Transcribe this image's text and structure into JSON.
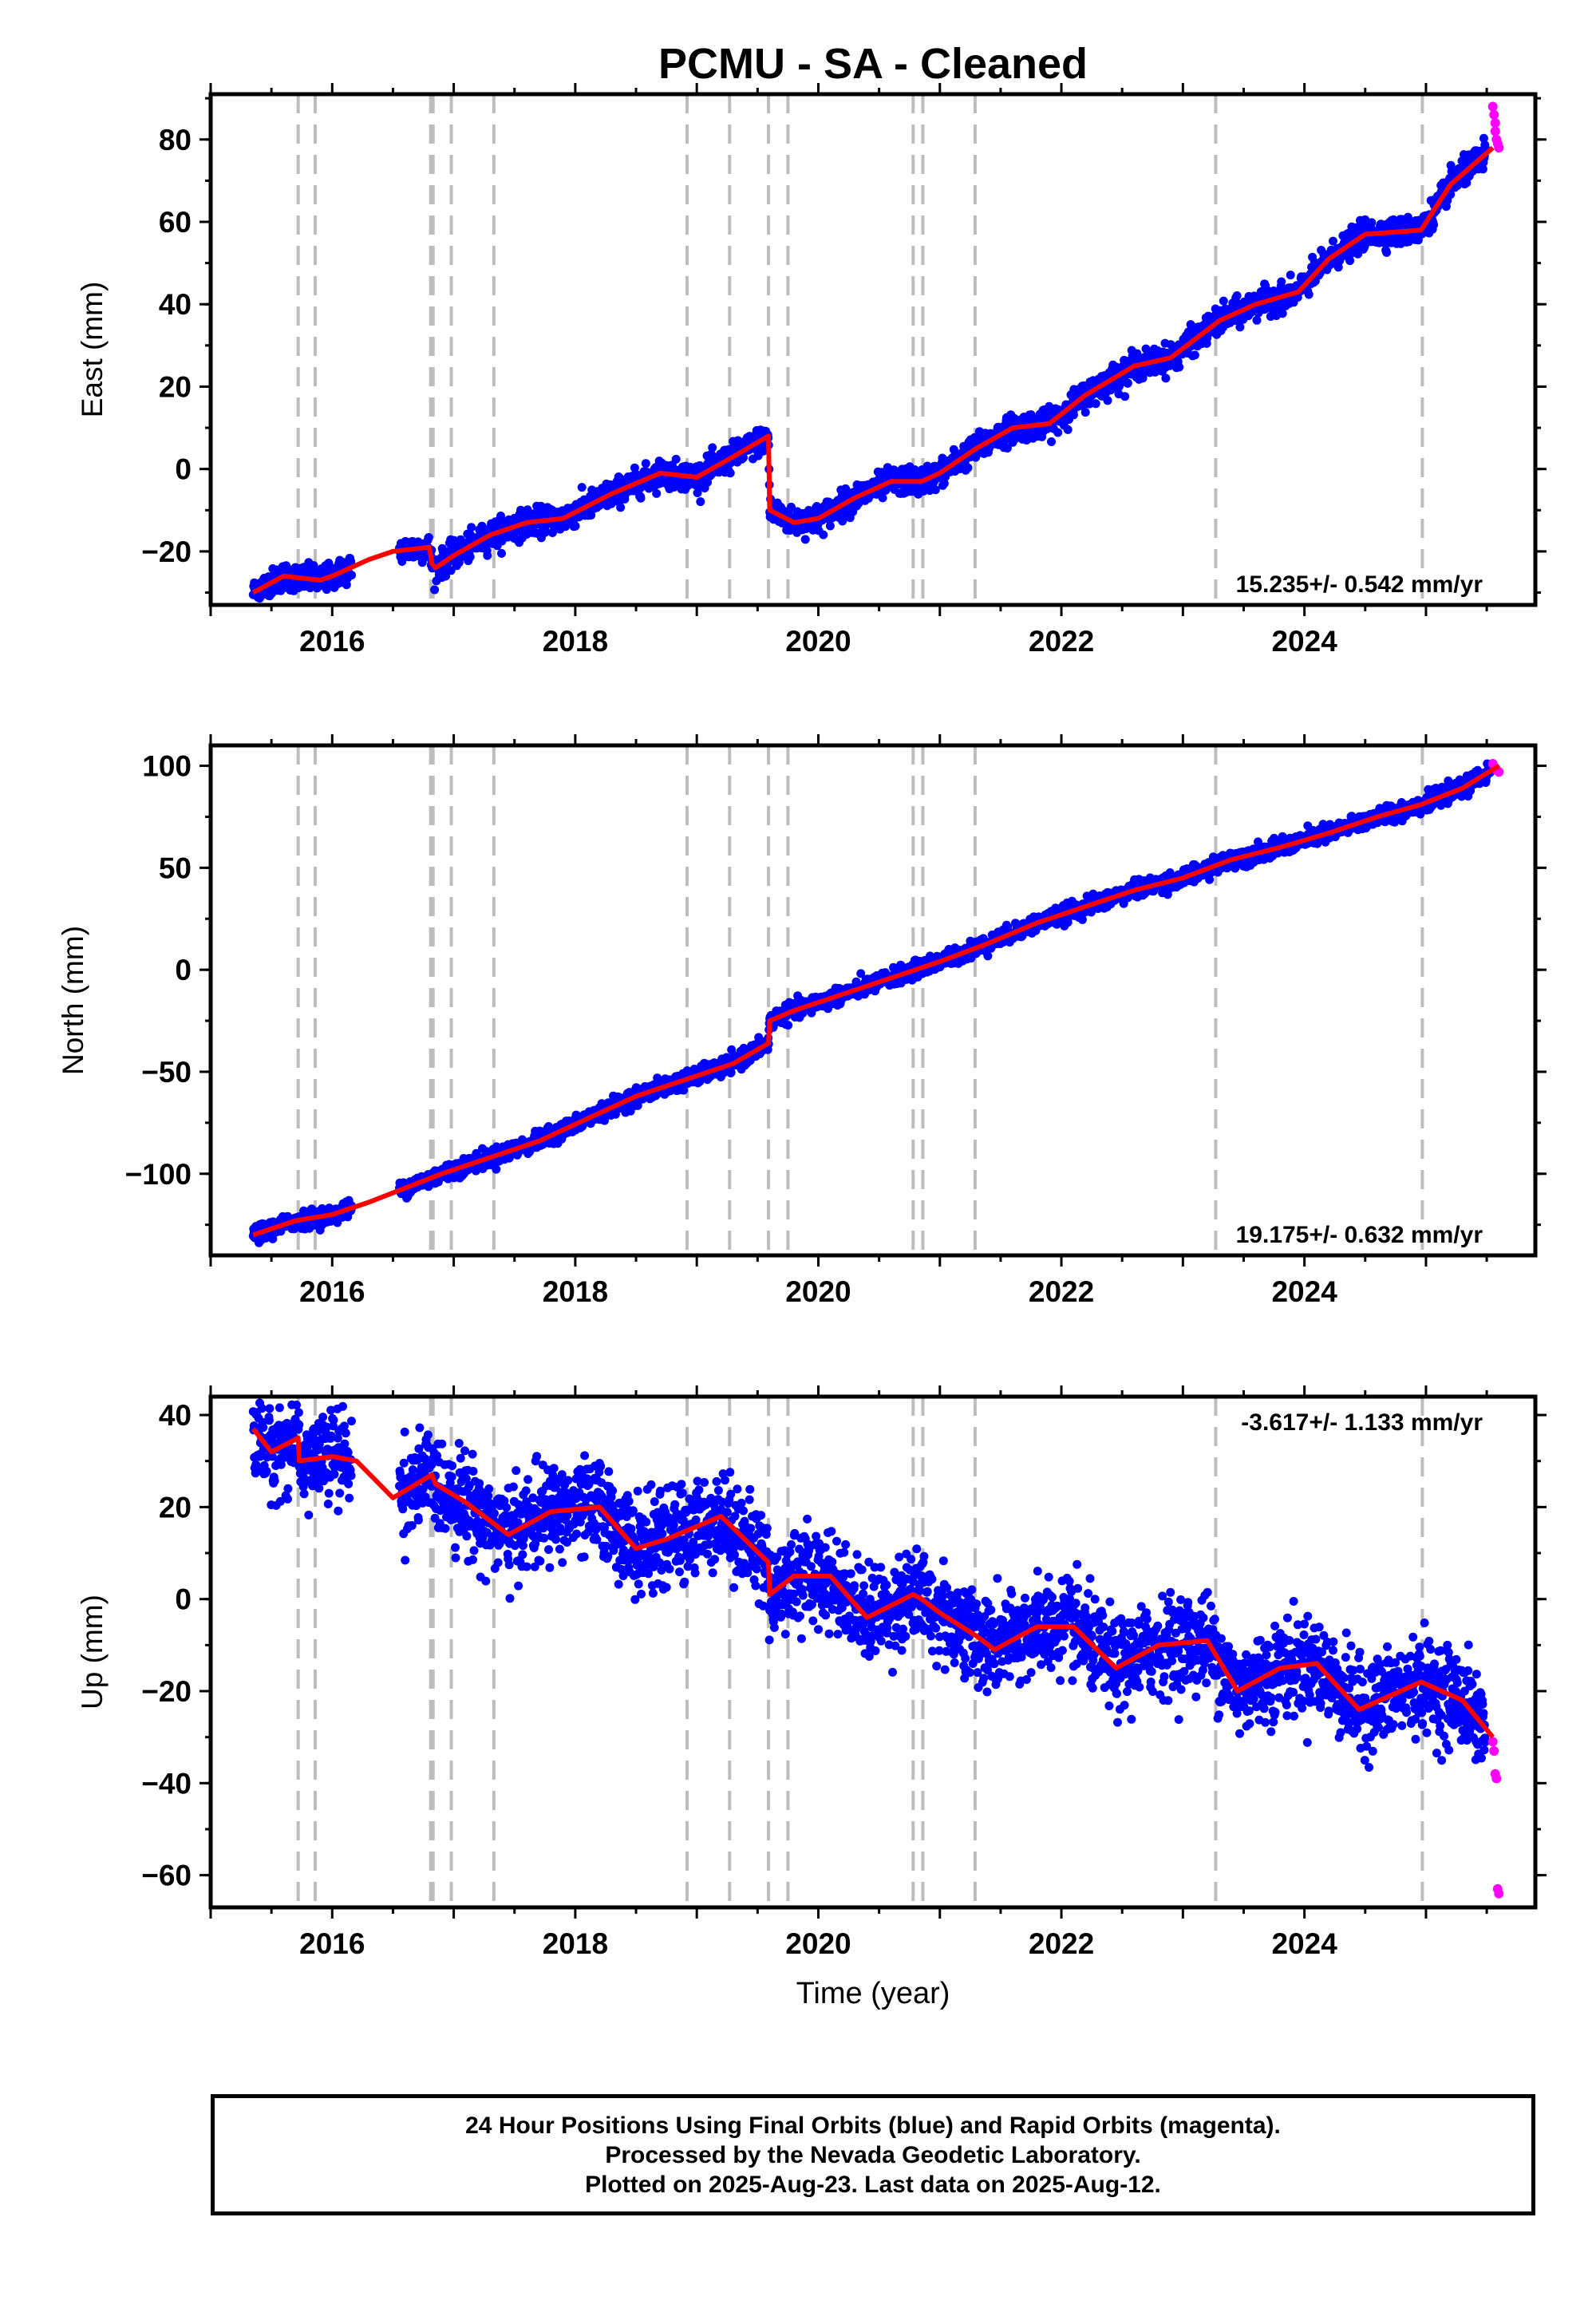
{
  "title": "PCMU  - SA - Cleaned",
  "xlabel": "Time (year)",
  "colors": {
    "final_orbits": "#0000ff",
    "rapid_orbits": "#ff00ff",
    "model": "#ff0000",
    "event_lines": "#bdbdbd"
  },
  "footer": {
    "line1": "24 Hour Positions Using Final Orbits (blue) and Rapid Orbits (magenta).",
    "line2": "Processed by the Nevada Geodetic Laboratory.",
    "line3": "Plotted on 2025-Aug-23. Last data on 2025-Aug-12."
  },
  "chart_data": {
    "type": "scatter",
    "title": "PCMU  - SA - Cleaned",
    "xlabel": "Time (year)",
    "xlim": [
      2015.0,
      2025.9
    ],
    "x_ticks": [
      2016,
      2018,
      2020,
      2022,
      2024
    ],
    "x_tick_labels": [
      "2016",
      "2018",
      "2020",
      "2022",
      "2024"
    ],
    "event_lines": [
      2015.72,
      2015.86,
      2016.81,
      2016.83,
      2016.98,
      2017.33,
      2018.92,
      2019.27,
      2019.59,
      2019.75,
      2020.78,
      2020.86,
      2021.29,
      2023.27,
      2024.97
    ],
    "panels": [
      {
        "name": "east",
        "ylabel": "East (mm)",
        "ylim": [
          -33,
          91
        ],
        "y_ticks": [
          -20,
          0,
          20,
          40,
          60,
          80
        ],
        "y_tick_labels": [
          "−20",
          "0",
          "20",
          "40",
          "60",
          "80"
        ],
        "rate_label": "15.235+/- 0.542 mm/yr",
        "rate_position": "bottom-right",
        "scatter_sigma": 1.6,
        "series": [
          {
            "name": "model",
            "x": [
              2015.35,
              2015.6,
              2015.9,
              2016.0,
              2016.3,
              2016.5,
              2016.8,
              2016.82,
              2016.85,
              2017.0,
              2017.3,
              2017.6,
              2017.9,
              2018.3,
              2018.7,
              2019.0,
              2019.3,
              2019.59,
              2019.6,
              2019.8,
              2020.0,
              2020.3,
              2020.6,
              2020.85,
              2021.0,
              2021.3,
              2021.6,
              2021.9,
              2022.2,
              2022.6,
              2022.9,
              2023.3,
              2023.6,
              2023.95,
              2024.2,
              2024.5,
              2024.96,
              2025.2,
              2025.55
            ],
            "y": [
              -30,
              -26,
              -27,
              -26,
              -22,
              -20,
              -19,
              -23,
              -24,
              -21,
              -16,
              -13,
              -12,
              -6,
              -1,
              -2,
              3,
              8,
              -10,
              -13,
              -12,
              -7,
              -3,
              -3,
              -1,
              5,
              10,
              11,
              18,
              25,
              27,
              36,
              40,
              43,
              51,
              57,
              58,
              69,
              78
            ]
          }
        ],
        "rapid_points": {
          "x": [
            2025.55,
            2025.56,
            2025.57,
            2025.57,
            2025.58,
            2025.59,
            2025.6
          ],
          "y": [
            88,
            86,
            84,
            82,
            80,
            79,
            78
          ]
        }
      },
      {
        "name": "north",
        "ylabel": "North (mm)",
        "ylim": [
          -140,
          110
        ],
        "y_ticks": [
          -100,
          -50,
          0,
          50,
          100
        ],
        "y_tick_labels": [
          "−100",
          "−50",
          "0",
          "50",
          "100"
        ],
        "rate_label": "19.175+/- 0.632 mm/yr",
        "rate_position": "bottom-right",
        "scatter_sigma": 2.0,
        "series": [
          {
            "name": "model",
            "x": [
              2015.35,
              2015.7,
              2016.0,
              2016.3,
              2016.6,
              2016.9,
              2017.3,
              2017.7,
              2018.1,
              2018.5,
              2018.9,
              2019.3,
              2019.59,
              2019.6,
              2019.8,
              2020.2,
              2020.6,
              2021.0,
              2021.4,
              2021.8,
              2022.2,
              2022.6,
              2023.0,
              2023.4,
              2023.8,
              2024.2,
              2024.6,
              2024.96,
              2025.3,
              2025.6
            ],
            "y": [
              -130,
              -123,
              -120,
              -114,
              -107,
              -100,
              -92,
              -84,
              -73,
              -62,
              -54,
              -46,
              -36,
              -25,
              -20,
              -12,
              -4,
              4,
              13,
              23,
              31,
              39,
              45,
              54,
              60,
              67,
              75,
              81,
              89,
              100
            ]
          }
        ],
        "rapid_points": {
          "x": [
            2025.55,
            2025.57,
            2025.58,
            2025.6
          ],
          "y": [
            101,
            99,
            98,
            97
          ]
        }
      },
      {
        "name": "up",
        "ylabel": "Up (mm)",
        "ylim": [
          -67,
          44
        ],
        "y_ticks": [
          -60,
          -40,
          -20,
          0,
          20,
          40
        ],
        "y_tick_labels": [
          "−60",
          "−40",
          "−20",
          "0",
          "20",
          "40"
        ],
        "rate_label": "-3.617+/- 1.133 mm/yr",
        "rate_position": "top-right",
        "scatter_sigma": 5.0,
        "series": [
          {
            "name": "model",
            "x": [
              2015.35,
              2015.5,
              2015.72,
              2015.73,
              2016.0,
              2016.2,
              2016.5,
              2016.82,
              2016.85,
              2017.1,
              2017.45,
              2017.8,
              2018.2,
              2018.5,
              2018.75,
              2019.2,
              2019.55,
              2019.59,
              2019.6,
              2019.8,
              2020.1,
              2020.4,
              2020.78,
              2020.85,
              2021.0,
              2021.3,
              2021.45,
              2021.8,
              2022.1,
              2022.45,
              2022.8,
              2023.2,
              2023.45,
              2023.8,
              2024.1,
              2024.45,
              2024.96,
              2025.3,
              2025.55
            ],
            "y": [
              37,
              32,
              35,
              30,
              31,
              30,
              22,
              27,
              25,
              21,
              14,
              19,
              20,
              11,
              13,
              18,
              9,
              8,
              1,
              5,
              5,
              -4,
              1,
              0,
              -3,
              -8,
              -11,
              -6,
              -6,
              -15,
              -10,
              -9,
              -20,
              -15,
              -14,
              -24,
              -18,
              -22,
              -30
            ]
          }
        ],
        "rapid_points": {
          "x": [
            2025.55,
            2025.56,
            2025.57,
            2025.58,
            2025.59,
            2025.6
          ],
          "y": [
            -31,
            -33,
            -38,
            -39,
            -63,
            -64
          ]
        }
      }
    ]
  }
}
